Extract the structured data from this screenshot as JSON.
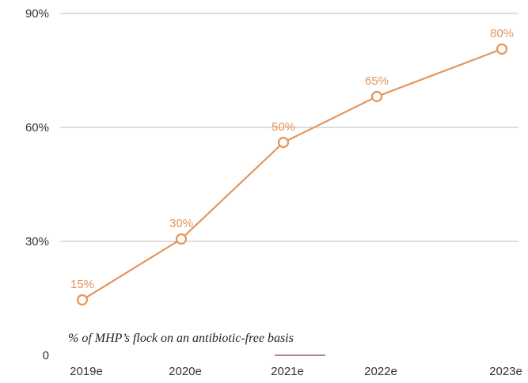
{
  "chart_data": {
    "type": "line",
    "categories": [
      "2019e",
      "2020e",
      "2021e",
      "2022e",
      "2023e"
    ],
    "series": [
      {
        "values": [
          15,
          30,
          50,
          65,
          80
        ],
        "data_labels": [
          "15%",
          "30%",
          "50%",
          "65%",
          "80%"
        ],
        "color": "#E5955A",
        "marker": "hollow-circle"
      }
    ],
    "y_ticks": [
      0,
      30,
      60,
      90
    ],
    "y_tick_labels": [
      "0",
      "30%",
      "60%",
      "90%"
    ],
    "ylim": [
      0,
      90
    ],
    "grid": true,
    "annotation": "% of MHP’s flock on an antibiotic-free basis"
  }
}
